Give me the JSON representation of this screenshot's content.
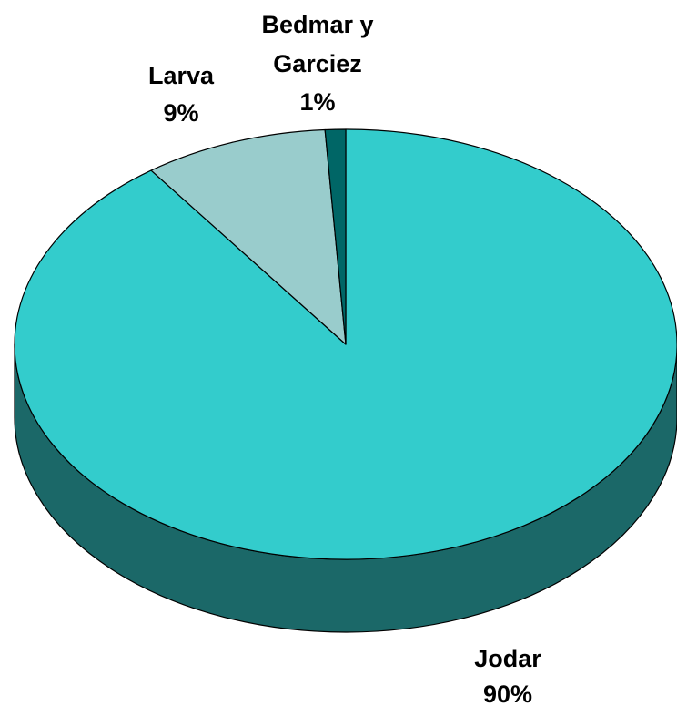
{
  "chart_data": {
    "type": "pie",
    "style": "3d",
    "title": "",
    "slices": [
      {
        "label": "Jodar",
        "value": 90,
        "value_label": "90%",
        "color": "#33CCCC",
        "side_color": "#1B6868"
      },
      {
        "label": "Larva",
        "value": 9,
        "value_label": "9%",
        "color": "#99CCCC",
        "side_color": "#4E6868"
      },
      {
        "label": "Bedmar y Garciez",
        "value": 1,
        "value_label": "1%",
        "color": "#006666",
        "side_color": "#003434"
      }
    ],
    "label_lines": {
      "jodar": [
        "Jodar",
        "90%"
      ],
      "larva": [
        "Larva",
        "9%"
      ],
      "bedmar": [
        "Bedmar y",
        "Garciez",
        "1%"
      ]
    },
    "legend": "none",
    "outline_color": "#000000"
  }
}
